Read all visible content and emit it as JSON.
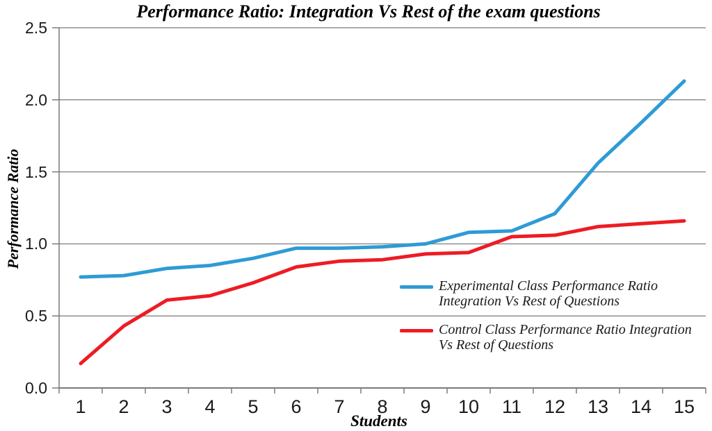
{
  "chart_data": {
    "type": "line",
    "title": "Performance Ratio: Integration Vs Rest of the exam questions",
    "xlabel": "Students",
    "ylabel": "Performance Ratio",
    "x": [
      1,
      2,
      3,
      4,
      5,
      6,
      7,
      8,
      9,
      10,
      11,
      12,
      13,
      14,
      15
    ],
    "xtick_labels": [
      "1",
      "2",
      "3",
      "4",
      "5",
      "6",
      "7",
      "8",
      "9",
      "10",
      "11",
      "12",
      "13",
      "14",
      "15"
    ],
    "ylim": [
      0.0,
      2.5
    ],
    "yticks": [
      0.0,
      0.5,
      1.0,
      1.5,
      2.0,
      2.5
    ],
    "ytick_labels": [
      "0.0",
      "0.5",
      "1.0",
      "1.5",
      "2.0",
      "2.5"
    ],
    "grid": true,
    "legend_position": "inside-bottom-right",
    "series": [
      {
        "name": "Experimental Class Performance Ratio Integration Vs Rest of Questions",
        "color": "#2E9BD5",
        "values": [
          0.77,
          0.78,
          0.83,
          0.85,
          0.9,
          0.97,
          0.97,
          0.98,
          1.0,
          1.08,
          1.09,
          1.21,
          1.56,
          1.84,
          2.13
        ]
      },
      {
        "name": "Control Class Performance Ratio Integration Vs Rest of Questions",
        "color": "#ED1C24",
        "values": [
          0.17,
          0.43,
          0.61,
          0.64,
          0.73,
          0.84,
          0.88,
          0.89,
          0.93,
          0.94,
          1.05,
          1.06,
          1.12,
          1.14,
          1.16
        ]
      }
    ],
    "colors": {
      "gridline": "#8F8F8F",
      "axis_line": "#7A7A7A",
      "text": "#000000"
    }
  }
}
